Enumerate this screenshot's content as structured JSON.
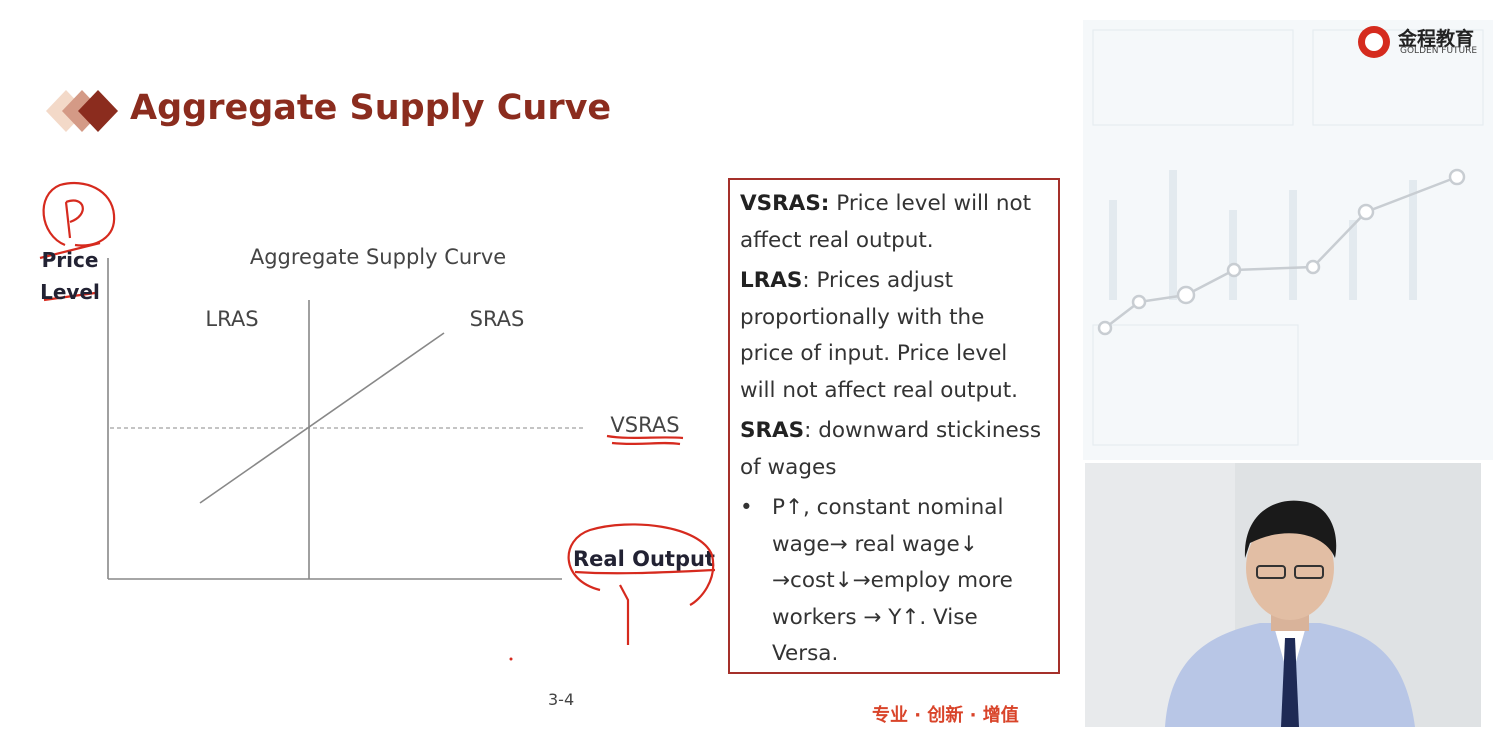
{
  "header": {
    "title": "Aggregate Supply Curve"
  },
  "logo": {
    "name": "金程教育",
    "subtitle": "GOLDEN FUTURE"
  },
  "diagram": {
    "title": "Aggregate Supply Curve",
    "y_axis_label": "Price Level",
    "x_axis_label": "Real Output",
    "curves": [
      "LRAS",
      "SRAS",
      "VSRAS"
    ]
  },
  "notes": {
    "paragraphs": [
      {
        "term": "VSRAS:",
        "text": " Price level will not affect real output."
      },
      {
        "term": "LRAS",
        "text": ": Prices adjust proportionally with the price of input. Price level will not affect real output."
      },
      {
        "term": "SRAS",
        "text": ": downward stickiness of wages"
      }
    ],
    "bullets": [
      "P↑, constant nominal wage→ real wage↓ →cost↓→employ more workers → Y↑. Vise Versa."
    ]
  },
  "footer": {
    "page": "3-4",
    "slogan": "专业 · 创新 · 增值"
  }
}
